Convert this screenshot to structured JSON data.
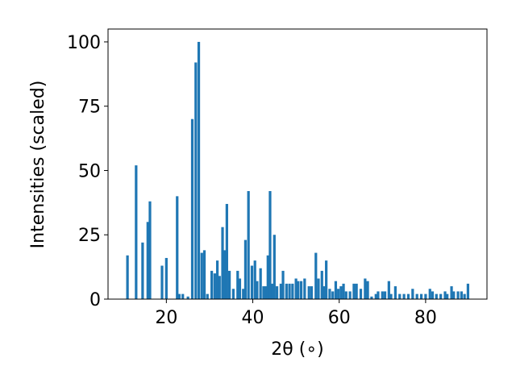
{
  "chart_data": {
    "type": "bar",
    "xlabel": "2θ (∘)",
    "ylabel": "Intensities (scaled)",
    "color": "#1f77b4",
    "x": [
      11.0,
      13.0,
      14.5,
      15.7,
      16.2,
      19.0,
      20.0,
      22.5,
      23.0,
      23.8,
      25.0,
      26.0,
      26.8,
      27.5,
      28.2,
      28.8,
      29.5,
      30.5,
      31.2,
      31.8,
      32.3,
      33.0,
      33.5,
      34.0,
      34.6,
      35.5,
      36.5,
      37.0,
      37.8,
      38.3,
      39.0,
      39.8,
      40.5,
      41.0,
      41.8,
      42.5,
      43.0,
      43.5,
      44.0,
      44.5,
      45.0,
      45.6,
      46.5,
      47.0,
      47.8,
      48.5,
      49.2,
      50.0,
      50.5,
      51.2,
      52.0,
      53.0,
      53.6,
      54.6,
      55.2,
      56.0,
      56.5,
      57.0,
      57.8,
      58.5,
      59.2,
      59.8,
      60.4,
      61.0,
      61.6,
      62.5,
      63.4,
      64.0,
      65.0,
      66.0,
      66.6,
      67.5,
      68.5,
      69.0,
      70.0,
      70.6,
      71.5,
      72.0,
      73.0,
      74.0,
      75.0,
      76.0,
      77.0,
      78.0,
      79.0,
      80.0,
      81.0,
      81.6,
      82.5,
      83.5,
      84.5,
      85.0,
      86.0,
      86.5,
      87.5,
      88.3,
      89.0,
      89.8
    ],
    "values": [
      17,
      52,
      22,
      30,
      38,
      13,
      16,
      40,
      2,
      2,
      1,
      70,
      92,
      100,
      18,
      19,
      2,
      11,
      10,
      15,
      9,
      28,
      19,
      37,
      11,
      4,
      11,
      8,
      4,
      23,
      42,
      13,
      15,
      7,
      12,
      5,
      5,
      17,
      42,
      6,
      25,
      5,
      6,
      11,
      6,
      6,
      6,
      8,
      7,
      7,
      8,
      5,
      5,
      18,
      8,
      11,
      5,
      15,
      4,
      3,
      7,
      4,
      5,
      6,
      3,
      3,
      6,
      6,
      4,
      8,
      7,
      1,
      2,
      3,
      3,
      3,
      7,
      2,
      5,
      2,
      2,
      2,
      4,
      2,
      2,
      2,
      4,
      3,
      2,
      2,
      3,
      2,
      5,
      3,
      3,
      3,
      2,
      6
    ],
    "xlim": [
      6.5,
      94.2
    ],
    "ylim": [
      0,
      105
    ],
    "xticks": [
      20,
      40,
      60,
      80
    ],
    "yticks": [
      0,
      25,
      50,
      75,
      100
    ]
  }
}
